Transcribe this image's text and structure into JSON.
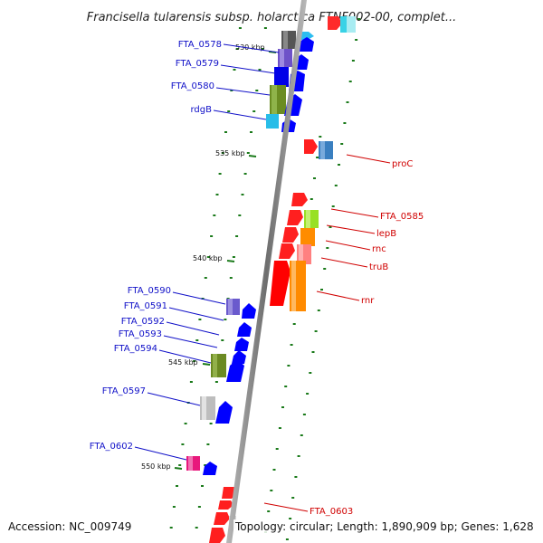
{
  "title": "Francisella tularensis subsp. holarctica FTNF002-00, complet...",
  "accession": "Accession: NC_009749",
  "topology": "Topology: circular; Length: 1,890,909 bp; Genes: 1,628",
  "colors": {
    "label_left": "#1010c8",
    "label_right": "#d00000",
    "backbone": "#8a8a8a",
    "tick": "#1a7a1a"
  },
  "scale": [
    {
      "label": "530 kbp"
    },
    {
      "label": "535 kbp"
    },
    {
      "label": "540 kbp"
    },
    {
      "label": "545 kbp"
    },
    {
      "label": "550 kbp"
    }
  ],
  "genes_left": [
    {
      "name": "FTA_0578"
    },
    {
      "name": "FTA_0579"
    },
    {
      "name": "FTA_0580"
    },
    {
      "name": "rdgB"
    },
    {
      "name": "FTA_0590"
    },
    {
      "name": "FTA_0591"
    },
    {
      "name": "FTA_0592"
    },
    {
      "name": "FTA_0593"
    },
    {
      "name": "FTA_0594"
    },
    {
      "name": "FTA_0597"
    },
    {
      "name": "FTA_0602"
    }
  ],
  "genes_right": [
    {
      "name": "proC"
    },
    {
      "name": "FTA_0585"
    },
    {
      "name": "lepB"
    },
    {
      "name": "rnc"
    },
    {
      "name": "truB"
    },
    {
      "name": "rnr"
    },
    {
      "name": "FTA_0603"
    }
  ]
}
